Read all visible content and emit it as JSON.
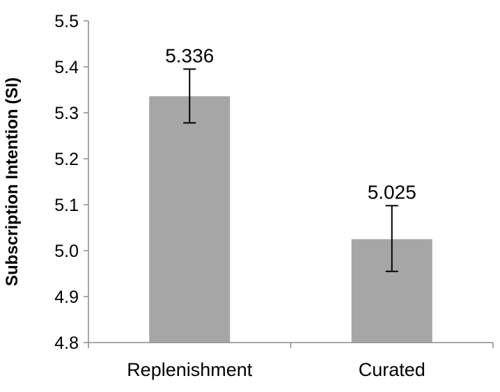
{
  "chart_data": {
    "type": "bar",
    "title": "",
    "xlabel": "",
    "ylabel": "Subscription Intention (SI)",
    "categories": [
      "Replenishment",
      "Curated"
    ],
    "values": [
      5.336,
      5.025
    ],
    "data_labels": [
      "5.336",
      "5.025"
    ],
    "error_bars": [
      {
        "low": 5.278,
        "high": 5.395
      },
      {
        "low": 4.955,
        "high": 5.098
      }
    ],
    "ylim": [
      4.8,
      5.5
    ],
    "y_ticks": [
      4.8,
      4.9,
      5.0,
      5.1,
      5.2,
      5.3,
      5.4,
      5.5
    ],
    "y_tick_labels": [
      "4.8",
      "4.9",
      "5.0",
      "5.1",
      "5.2",
      "5.3",
      "5.4",
      "5.5"
    ],
    "grid": false,
    "legend": "none",
    "colors": {
      "bar": "#a6a6a6",
      "axis": "#8c8c8c",
      "error_bar": "#000000",
      "text": "#000000"
    }
  }
}
